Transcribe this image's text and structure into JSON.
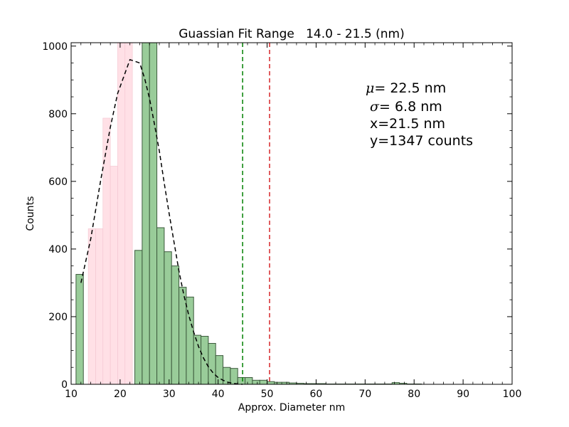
{
  "chart_data": {
    "type": "bar",
    "title": "Guassian Fit Range   14.0 - 21.5 (nm)",
    "xlabel": "Approx. Diameter nm",
    "ylabel": "Counts",
    "xlim": [
      10,
      100
    ],
    "ylim": [
      0,
      1010
    ],
    "x_ticks": [
      10,
      20,
      30,
      40,
      50,
      60,
      70,
      80,
      90,
      100
    ],
    "y_ticks": [
      0,
      200,
      400,
      600,
      800,
      1000
    ],
    "bin_width": 1.5,
    "series": [
      {
        "name": "",
        "color": "#ffe0e6",
        "bins": [
          {
            "x": 13.5,
            "value": 460
          },
          {
            "x": 15.0,
            "value": 460
          },
          {
            "x": 16.5,
            "value": 787
          },
          {
            "x": 18.0,
            "value": 645
          },
          {
            "x": 19.5,
            "value": 1010
          },
          {
            "x": 21.0,
            "value": 1010
          }
        ]
      },
      {
        "name": "",
        "color": "#99cc99",
        "bins": [
          {
            "x": 11.0,
            "value": 325
          },
          {
            "x": 23.0,
            "value": 396
          },
          {
            "x": 24.5,
            "value": 1010
          },
          {
            "x": 26.0,
            "value": 1010
          },
          {
            "x": 27.5,
            "value": 463
          },
          {
            "x": 29.0,
            "value": 392
          },
          {
            "x": 30.5,
            "value": 350
          },
          {
            "x": 32.0,
            "value": 287
          },
          {
            "x": 33.5,
            "value": 258
          },
          {
            "x": 35.0,
            "value": 145
          },
          {
            "x": 36.5,
            "value": 142
          },
          {
            "x": 38.0,
            "value": 121
          },
          {
            "x": 39.5,
            "value": 85
          },
          {
            "x": 41.0,
            "value": 50
          },
          {
            "x": 42.5,
            "value": 47
          },
          {
            "x": 44.0,
            "value": 20
          },
          {
            "x": 45.5,
            "value": 20
          },
          {
            "x": 47.0,
            "value": 12
          },
          {
            "x": 48.5,
            "value": 12
          },
          {
            "x": 50.0,
            "value": 8
          },
          {
            "x": 51.5,
            "value": 6
          },
          {
            "x": 53.0,
            "value": 6
          },
          {
            "x": 54.5,
            "value": 4
          },
          {
            "x": 56.0,
            "value": 3
          },
          {
            "x": 57.5,
            "value": 2
          },
          {
            "x": 59.0,
            "value": 2
          },
          {
            "x": 60.5,
            "value": 2
          },
          {
            "x": 62.0,
            "value": 1
          },
          {
            "x": 63.5,
            "value": 1
          },
          {
            "x": 65.0,
            "value": 1
          },
          {
            "x": 66.5,
            "value": 1
          },
          {
            "x": 68.0,
            "value": 1
          },
          {
            "x": 69.5,
            "value": 1
          },
          {
            "x": 71.0,
            "value": 1
          },
          {
            "x": 72.5,
            "value": 1
          },
          {
            "x": 74.0,
            "value": 1
          },
          {
            "x": 75.5,
            "value": 5
          },
          {
            "x": 77.0,
            "value": 3
          },
          {
            "x": 78.5,
            "value": 1
          },
          {
            "x": 80.0,
            "value": 1
          }
        ]
      }
    ],
    "fit_curve": {
      "style": "dashed",
      "color": "#000000",
      "points": [
        [
          12.0,
          300
        ],
        [
          14.0,
          430
        ],
        [
          16.0,
          600
        ],
        [
          18.0,
          760
        ],
        [
          19.5,
          860
        ],
        [
          21.0,
          920
        ],
        [
          22.0,
          960
        ],
        [
          23.0,
          955
        ],
        [
          24.0,
          950
        ],
        [
          25.0,
          905
        ],
        [
          26.0,
          845
        ],
        [
          27.0,
          770
        ],
        [
          28.0,
          690
        ],
        [
          29.0,
          595
        ],
        [
          30.0,
          505
        ],
        [
          31.0,
          420
        ],
        [
          32.0,
          335
        ],
        [
          33.0,
          265
        ],
        [
          34.0,
          205
        ],
        [
          35.0,
          155
        ],
        [
          36.0,
          112
        ],
        [
          37.0,
          78
        ],
        [
          38.0,
          52
        ],
        [
          39.0,
          33
        ],
        [
          40.0,
          20
        ],
        [
          41.0,
          12
        ],
        [
          42.0,
          6
        ],
        [
          43.0,
          3
        ],
        [
          44.0,
          1
        ],
        [
          45.0,
          0
        ]
      ]
    },
    "vlines": [
      {
        "x": 45.0,
        "color": "#008000",
        "style": "dashed"
      },
      {
        "x": 50.5,
        "color": "#d62728",
        "style": "dashed"
      }
    ],
    "annotations": {
      "mu": "μ",
      "mu_rest": "= 22.5 nm",
      "sigma": "σ",
      "sigma_rest": "= 6.8 nm",
      "x_line": "x=21.5 nm",
      "y_line": "y=1347 counts"
    },
    "grid": false
  }
}
